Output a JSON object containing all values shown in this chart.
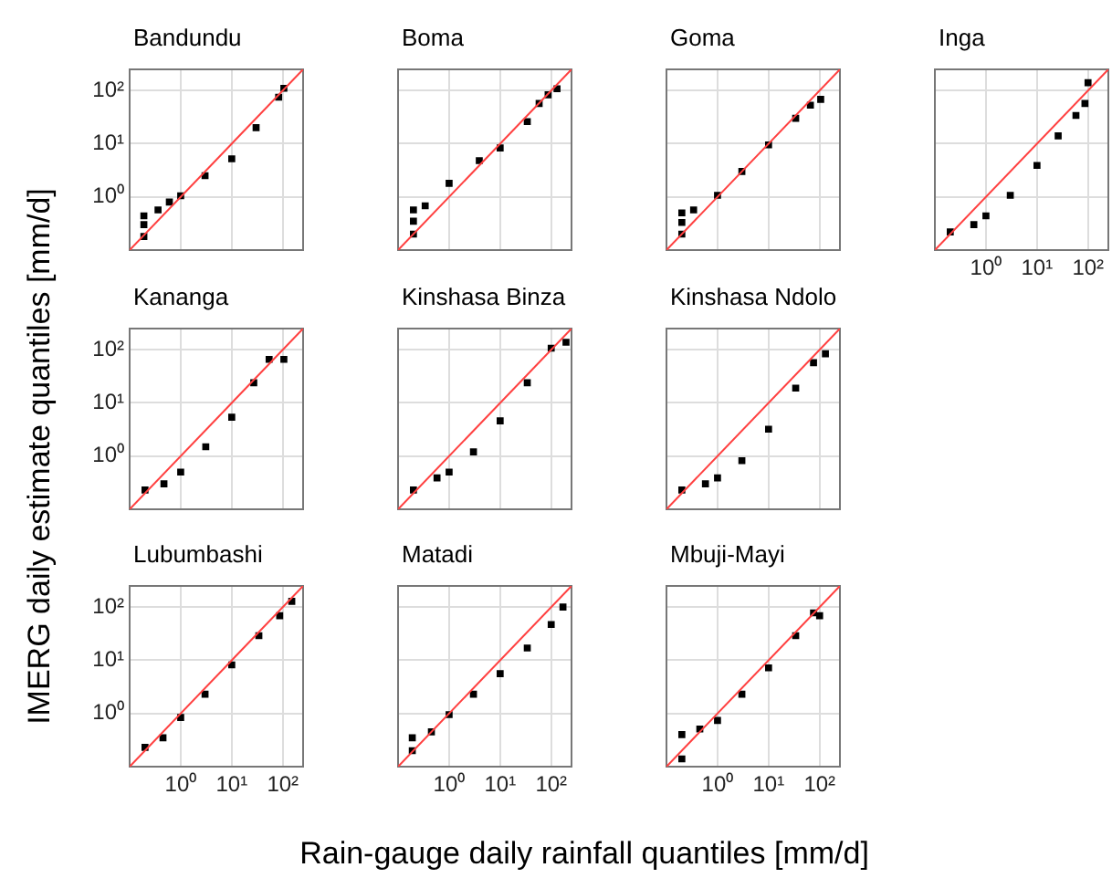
{
  "chart_data": [
    {
      "type": "scatter",
      "title": "Bandundu",
      "ylabel": "IMERG daily estimate quantiles [mm/d]",
      "log": "xy",
      "grid": true,
      "tick_labels": "y",
      "marker": "square",
      "xlim": [
        0.1,
        250
      ],
      "ylim": [
        0.1,
        250
      ],
      "xticks": [
        {
          "value": 1,
          "label": null
        },
        {
          "value": 10,
          "label": null
        },
        {
          "value": 100,
          "label": null
        }
      ],
      "yticks": [
        {
          "value": 1,
          "label": "10⁰"
        },
        {
          "value": 10,
          "label": "10¹"
        },
        {
          "value": 100,
          "label": "10²"
        }
      ],
      "series": [
        {
          "type": "scatter",
          "color": "#000000",
          "x": [
            0.19,
            0.19,
            0.19,
            0.36,
            0.6,
            1,
            3,
            10,
            30,
            83,
            105
          ],
          "values": [
            0.18,
            0.3,
            0.44,
            0.57,
            0.8,
            1.05,
            2.5,
            5.2,
            20,
            75,
            110
          ]
        },
        {
          "type": "line",
          "color": "#ff4040",
          "marker": "none",
          "x": [
            0.1,
            250
          ],
          "values": [
            0.1,
            250
          ]
        }
      ]
    },
    {
      "type": "scatter",
      "title": "Boma",
      "log": "xy",
      "grid": true,
      "tick_labels": false,
      "marker": "square",
      "xlim": [
        0.1,
        250
      ],
      "ylim": [
        0.1,
        250
      ],
      "xticks": [
        {
          "value": 1,
          "label": null
        },
        {
          "value": 10,
          "label": null
        },
        {
          "value": 100,
          "label": null
        }
      ],
      "yticks": [
        {
          "value": 1,
          "label": null
        },
        {
          "value": 10,
          "label": null
        },
        {
          "value": 100,
          "label": null
        }
      ],
      "series": [
        {
          "type": "scatter",
          "color": "#000000",
          "x": [
            0.2,
            0.2,
            0.2,
            0.34,
            1,
            3.9,
            10,
            34,
            58,
            87,
            130
          ],
          "values": [
            0.2,
            0.35,
            0.57,
            0.68,
            1.8,
            4.8,
            8.3,
            26,
            57,
            83,
            108
          ]
        },
        {
          "type": "line",
          "color": "#ff4040",
          "marker": "none",
          "x": [
            0.1,
            250
          ],
          "values": [
            0.1,
            250
          ]
        }
      ]
    },
    {
      "type": "scatter",
      "title": "Goma",
      "log": "xy",
      "grid": true,
      "tick_labels": false,
      "marker": "square",
      "xlim": [
        0.1,
        250
      ],
      "ylim": [
        0.1,
        250
      ],
      "xticks": [
        {
          "value": 1,
          "label": null
        },
        {
          "value": 10,
          "label": null
        },
        {
          "value": 100,
          "label": null
        }
      ],
      "yticks": [
        {
          "value": 1,
          "label": null
        },
        {
          "value": 10,
          "label": null
        },
        {
          "value": 100,
          "label": null
        }
      ],
      "series": [
        {
          "type": "scatter",
          "color": "#000000",
          "x": [
            0.2,
            0.2,
            0.2,
            0.34,
            1,
            3,
            10,
            34,
            66,
            105
          ],
          "values": [
            0.2,
            0.33,
            0.5,
            0.57,
            1.07,
            3,
            9.5,
            30,
            53,
            68
          ]
        },
        {
          "type": "line",
          "color": "#ff4040",
          "marker": "none",
          "x": [
            0.1,
            250
          ],
          "values": [
            0.1,
            250
          ]
        }
      ]
    },
    {
      "type": "scatter",
      "title": "Inga",
      "log": "xy",
      "grid": true,
      "tick_labels": "x",
      "marker": "square",
      "xlim": [
        0.1,
        250
      ],
      "ylim": [
        0.1,
        250
      ],
      "xticks": [
        {
          "value": 1,
          "label": "10⁰"
        },
        {
          "value": 10,
          "label": "10¹"
        },
        {
          "value": 100,
          "label": "10²"
        }
      ],
      "yticks": [
        {
          "value": 1,
          "label": null
        },
        {
          "value": 10,
          "label": null
        },
        {
          "value": 100,
          "label": null
        }
      ],
      "series": [
        {
          "type": "scatter",
          "color": "#000000",
          "x": [
            0.2,
            0.58,
            1,
            3,
            10,
            26,
            58,
            87,
            100
          ],
          "values": [
            0.22,
            0.3,
            0.44,
            1.07,
            3.9,
            14,
            34,
            57,
            140
          ]
        },
        {
          "type": "line",
          "color": "#ff4040",
          "marker": "none",
          "x": [
            0.1,
            250
          ],
          "values": [
            0.1,
            250
          ]
        }
      ]
    },
    {
      "type": "scatter",
      "title": "Kananga",
      "log": "xy",
      "grid": true,
      "tick_labels": "y",
      "marker": "square",
      "xlim": [
        0.1,
        250
      ],
      "ylim": [
        0.1,
        250
      ],
      "xticks": [
        {
          "value": 1,
          "label": null
        },
        {
          "value": 10,
          "label": null
        },
        {
          "value": 100,
          "label": null
        }
      ],
      "yticks": [
        {
          "value": 1,
          "label": "10⁰"
        },
        {
          "value": 10,
          "label": "10¹"
        },
        {
          "value": 100,
          "label": "10²"
        }
      ],
      "series": [
        {
          "type": "scatter",
          "color": "#000000",
          "x": [
            0.2,
            0.47,
            1,
            3.1,
            10,
            27,
            54,
            105
          ],
          "values": [
            0.23,
            0.3,
            0.5,
            1.5,
            5.4,
            24,
            66,
            66
          ]
        },
        {
          "type": "line",
          "color": "#ff4040",
          "marker": "none",
          "x": [
            0.1,
            250
          ],
          "values": [
            0.1,
            250
          ]
        }
      ]
    },
    {
      "type": "scatter",
      "title": "Kinshasa Binza",
      "log": "xy",
      "grid": true,
      "tick_labels": false,
      "marker": "square",
      "xlim": [
        0.1,
        250
      ],
      "ylim": [
        0.1,
        250
      ],
      "xticks": [
        {
          "value": 1,
          "label": null
        },
        {
          "value": 10,
          "label": null
        },
        {
          "value": 100,
          "label": null
        }
      ],
      "yticks": [
        {
          "value": 1,
          "label": null
        },
        {
          "value": 10,
          "label": null
        },
        {
          "value": 100,
          "label": null
        }
      ],
      "series": [
        {
          "type": "scatter",
          "color": "#000000",
          "x": [
            0.2,
            0.58,
            1,
            3,
            10,
            34,
            100,
            195
          ],
          "values": [
            0.23,
            0.39,
            0.5,
            1.2,
            4.6,
            24,
            107,
            138
          ]
        },
        {
          "type": "line",
          "color": "#ff4040",
          "marker": "none",
          "x": [
            0.1,
            250
          ],
          "values": [
            0.1,
            250
          ]
        }
      ]
    },
    {
      "type": "scatter",
      "title": "Kinshasa Ndolo",
      "log": "xy",
      "grid": true,
      "tick_labels": false,
      "marker": "square",
      "xlim": [
        0.1,
        250
      ],
      "ylim": [
        0.1,
        250
      ],
      "xticks": [
        {
          "value": 1,
          "label": null
        },
        {
          "value": 10,
          "label": null
        },
        {
          "value": 100,
          "label": null
        }
      ],
      "yticks": [
        {
          "value": 1,
          "label": null
        },
        {
          "value": 10,
          "label": null
        },
        {
          "value": 100,
          "label": null
        }
      ],
      "series": [
        {
          "type": "scatter",
          "color": "#000000",
          "x": [
            0.2,
            0.58,
            1,
            3,
            10,
            34,
            76,
            130
          ],
          "values": [
            0.23,
            0.3,
            0.39,
            0.82,
            3.2,
            19,
            57,
            84
          ]
        },
        {
          "type": "line",
          "color": "#ff4040",
          "marker": "none",
          "x": [
            0.1,
            250
          ],
          "values": [
            0.1,
            250
          ]
        }
      ]
    },
    {
      "type": "scatter",
      "title": "Lubumbashi",
      "log": "xy",
      "grid": true,
      "marker": "square",
      "xlim": [
        0.1,
        250
      ],
      "ylim": [
        0.1,
        250
      ],
      "xticks": [
        {
          "value": 1,
          "label": "10⁰"
        },
        {
          "value": 10,
          "label": "10¹"
        },
        {
          "value": 100,
          "label": "10²"
        }
      ],
      "yticks": [
        {
          "value": 1,
          "label": "10⁰"
        },
        {
          "value": 10,
          "label": "10¹"
        },
        {
          "value": 100,
          "label": "10²"
        }
      ],
      "series": [
        {
          "type": "scatter",
          "color": "#000000",
          "x": [
            0.2,
            0.45,
            1,
            3,
            10,
            34,
            87,
            150
          ],
          "values": [
            0.23,
            0.35,
            0.84,
            2.3,
            8.2,
            29,
            69,
            128
          ]
        },
        {
          "type": "line",
          "color": "#ff4040",
          "marker": "none",
          "x": [
            0.1,
            250
          ],
          "values": [
            0.1,
            250
          ]
        }
      ]
    },
    {
      "type": "scatter",
      "title": "Matadi",
      "xlabel": "Rain-gauge daily rainfall quantiles [mm/d]",
      "log": "xy",
      "grid": true,
      "tick_labels": "x",
      "marker": "square",
      "xlim": [
        0.1,
        250
      ],
      "ylim": [
        0.1,
        250
      ],
      "xticks": [
        {
          "value": 1,
          "label": "10⁰"
        },
        {
          "value": 10,
          "label": "10¹"
        },
        {
          "value": 100,
          "label": "10²"
        }
      ],
      "yticks": [
        {
          "value": 1,
          "label": null
        },
        {
          "value": 10,
          "label": null
        },
        {
          "value": 100,
          "label": null
        }
      ],
      "series": [
        {
          "type": "scatter",
          "color": "#000000",
          "x": [
            0.19,
            0.19,
            0.45,
            1,
            3,
            10,
            34,
            100,
            170
          ],
          "values": [
            0.2,
            0.35,
            0.45,
            0.95,
            2.3,
            5.6,
            17,
            47,
            100
          ]
        },
        {
          "type": "line",
          "color": "#ff4040",
          "marker": "none",
          "x": [
            0.1,
            250
          ],
          "values": [
            0.1,
            250
          ]
        }
      ]
    },
    {
      "type": "scatter",
      "title": "Mbuji-Mayi",
      "log": "xy",
      "grid": true,
      "tick_labels": "x",
      "marker": "square",
      "xlim": [
        0.1,
        250
      ],
      "ylim": [
        0.1,
        250
      ],
      "xticks": [
        {
          "value": 1,
          "label": "10⁰"
        },
        {
          "value": 10,
          "label": "10¹"
        },
        {
          "value": 100,
          "label": "10²"
        }
      ],
      "yticks": [
        {
          "value": 1,
          "label": null
        },
        {
          "value": 10,
          "label": null
        },
        {
          "value": 100,
          "label": null
        }
      ],
      "series": [
        {
          "type": "scatter",
          "color": "#000000",
          "x": [
            0.2,
            0.2,
            0.45,
            1,
            3,
            10,
            34,
            76,
            100
          ],
          "values": [
            0.14,
            0.4,
            0.51,
            0.74,
            2.3,
            7.2,
            29,
            78,
            69
          ]
        },
        {
          "type": "line",
          "color": "#ff4040",
          "marker": "none",
          "x": [
            0.1,
            250
          ],
          "values": [
            0.1,
            250
          ]
        }
      ]
    }
  ]
}
